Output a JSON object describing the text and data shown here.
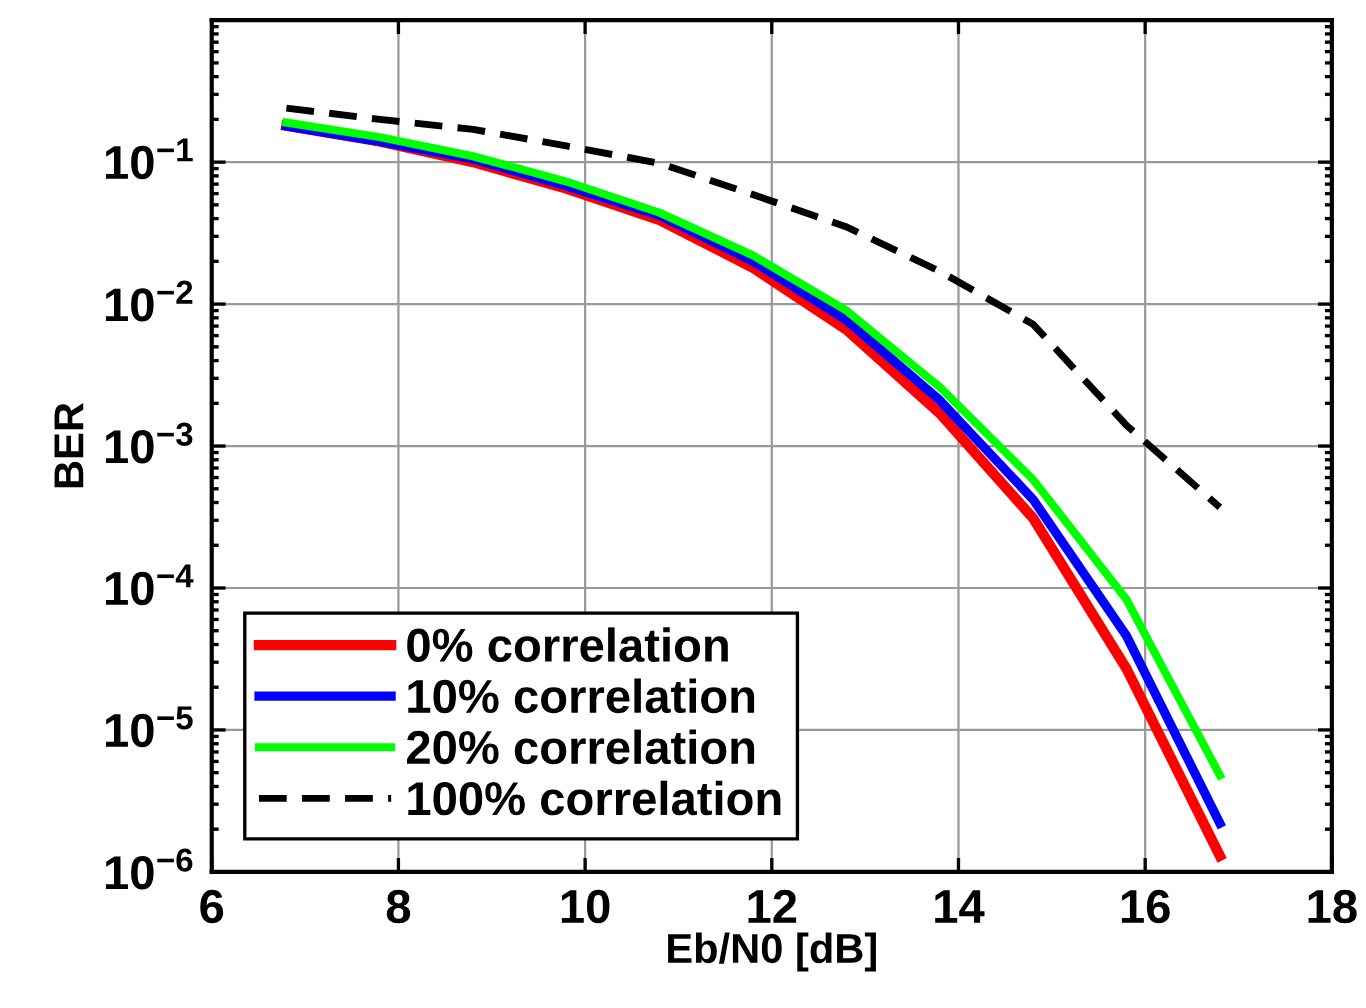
{
  "chart_data": {
    "type": "line",
    "xlabel": "Eb/N0 [dB]",
    "ylabel": "BER",
    "x": [
      6.8,
      7.8,
      8.8,
      9.8,
      10.8,
      11.8,
      12.8,
      13.8,
      14.8,
      15.8,
      16.8
    ],
    "series": [
      {
        "name": "0% correlation",
        "color": "#ff0000",
        "line_style": "solid",
        "values": [
          0.18,
          0.14,
          0.1,
          0.065,
          0.039,
          0.018,
          0.0066,
          0.0017,
          0.00031,
          2.7e-05,
          1.3e-06
        ]
      },
      {
        "name": "10% correlation",
        "color": "#0000ff",
        "line_style": "solid",
        "values": [
          0.18,
          0.14,
          0.105,
          0.068,
          0.042,
          0.02,
          0.0077,
          0.0021,
          0.00042,
          4.6e-05,
          2.2e-06
        ]
      },
      {
        "name": "20% correlation",
        "color": "#00ff00",
        "line_style": "solid",
        "values": [
          0.19,
          0.15,
          0.11,
          0.073,
          0.044,
          0.022,
          0.009,
          0.0026,
          0.00058,
          8.3e-05,
          4.8e-06
        ]
      },
      {
        "name": "100% correlation",
        "color": "#000000",
        "line_style": "dashed",
        "values": [
          0.24,
          0.2,
          0.17,
          0.13,
          0.098,
          0.059,
          0.035,
          0.017,
          0.0072,
          0.0014,
          0.00037
        ]
      }
    ],
    "log": "y",
    "xlim": [
      6,
      18
    ],
    "xticks": [
      6,
      8,
      10,
      12,
      14,
      16,
      18
    ],
    "ylim": [
      1e-06,
      1
    ],
    "yticks": [
      {
        "value": 1e-06,
        "label": "10$^{−6}$"
      },
      {
        "value": 1e-05,
        "label": "10$^{−5}$"
      },
      {
        "value": 0.0001,
        "label": "10$^{−4}$"
      },
      {
        "value": 0.001,
        "label": "10$^{−3}$"
      },
      {
        "value": 0.01,
        "label": "10$^{−2}$"
      },
      {
        "value": 0.1,
        "label": "10$^{−1}$"
      },
      {
        "value": 1,
        "label": null
      }
    ],
    "grid": true,
    "legend": "bottom left"
  }
}
